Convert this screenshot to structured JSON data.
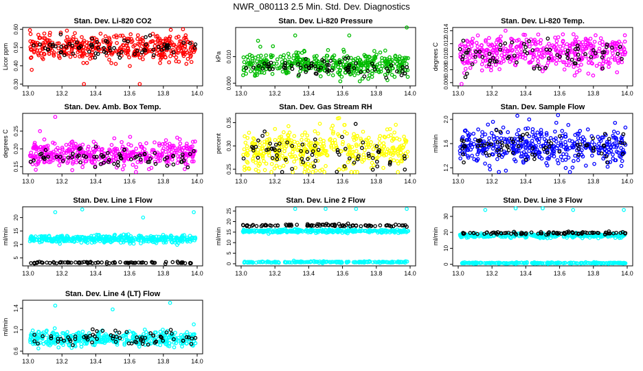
{
  "title": "NWR_080113  2.5 Min. Std. Dev. Diagnostics",
  "colors": {
    "axis": "#000000",
    "secondary": "#000000"
  },
  "chart_data": [
    {
      "type": "scatter",
      "title": "Stan. Dev. Li-820 CO2",
      "ylabel": "Licor ppm",
      "xlim": [
        13.0,
        14.0
      ],
      "ylim": [
        0.29,
        0.61
      ],
      "xticks": [
        "13.0",
        "13.2",
        "13.4",
        "13.6",
        "13.8",
        "14.0"
      ],
      "yticks": [
        {
          "v": 0.3,
          "label": "0.30"
        },
        {
          "v": 0.4,
          "label": "0.40"
        },
        {
          "v": 0.5,
          "label": "0.50"
        },
        {
          "v": 0.6,
          "label": "0.60"
        }
      ],
      "series": [
        {
          "name": "primary",
          "color": "#ff0000",
          "center": 0.5,
          "spread": 0.035,
          "n": 420,
          "outliers": [
            [
              13.06,
              0.57
            ],
            [
              13.33,
              0.3
            ],
            [
              13.66,
              0.3
            ],
            [
              13.84,
              0.56
            ]
          ]
        },
        {
          "name": "secondary",
          "color": "#000000",
          "center": 0.5,
          "spread": 0.03,
          "n": 70
        }
      ]
    },
    {
      "type": "scatter",
      "title": "Stan. Dev. Li-820 Pressure",
      "ylabel": "kPa",
      "xlim": [
        13.0,
        14.0
      ],
      "ylim": [
        -0.001,
        0.021
      ],
      "xticks": [
        "13.0",
        "13.2",
        "13.4",
        "13.6",
        "13.8",
        "14.0"
      ],
      "yticks": [
        {
          "v": 0.0,
          "label": "0.000"
        },
        {
          "v": 0.01,
          "label": "0.010"
        }
      ],
      "series": [
        {
          "name": "primary",
          "color": "#00bb00",
          "center": 0.007,
          "spread": 0.0022,
          "n": 420,
          "outliers": [
            [
              13.1,
              0.016
            ],
            [
              13.32,
              0.018
            ],
            [
              13.64,
              0.018
            ],
            [
              13.98,
              0.021
            ]
          ]
        },
        {
          "name": "secondary",
          "color": "#000000",
          "center": 0.006,
          "spread": 0.0015,
          "n": 70
        }
      ]
    },
    {
      "type": "scatter",
      "title": "Stan. Dev. Li-820 Temp.",
      "ylabel": "degrees C",
      "xlim": [
        13.0,
        14.0
      ],
      "ylim": [
        0.0055,
        0.0145
      ],
      "xticks": [
        "13.0",
        "13.2",
        "13.4",
        "13.6",
        "13.8",
        "14.0"
      ],
      "yticks": [
        {
          "v": 0.006,
          "label": "0.006"
        },
        {
          "v": 0.008,
          "label": "0.008"
        },
        {
          "v": 0.01,
          "label": "0.010"
        },
        {
          "v": 0.012,
          "label": "0.012"
        },
        {
          "v": 0.014,
          "label": "0.014"
        }
      ],
      "series": [
        {
          "name": "primary",
          "color": "#ff00ff",
          "center": 0.0105,
          "spread": 0.0013,
          "n": 420,
          "outliers": [
            [
              13.02,
              0.0058
            ],
            [
              13.28,
              0.014
            ]
          ]
        },
        {
          "name": "secondary",
          "color": "#000000",
          "center": 0.0105,
          "spread": 0.0011,
          "n": 70
        }
      ]
    },
    {
      "type": "scatter",
      "title": "Stan. Dev. Amb. Box Temp.",
      "ylabel": "degrees C",
      "xlim": [
        13.0,
        14.0
      ],
      "ylim": [
        0.13,
        0.3
      ],
      "xticks": [
        "13.0",
        "13.2",
        "13.4",
        "13.6",
        "13.8",
        "14.0"
      ],
      "yticks": [
        {
          "v": 0.15,
          "label": "0.15"
        },
        {
          "v": 0.2,
          "label": "0.20"
        },
        {
          "v": 0.25,
          "label": "0.25"
        }
      ],
      "series": [
        {
          "name": "primary",
          "color": "#ff00ff",
          "center": 0.185,
          "spread": 0.018,
          "n": 420,
          "outliers": [
            [
              13.16,
              0.29
            ],
            [
              13.07,
              0.25
            ]
          ]
        },
        {
          "name": "secondary",
          "color": "#000000",
          "center": 0.175,
          "spread": 0.015,
          "n": 70
        }
      ]
    },
    {
      "type": "scatter",
      "title": "Stan. Dev. Gas Stream RH",
      "ylabel": "percent",
      "xlim": [
        13.0,
        14.0
      ],
      "ylim": [
        0.24,
        0.37
      ],
      "xticks": [
        "13.0",
        "13.2",
        "13.4",
        "13.6",
        "13.8",
        "14.0"
      ],
      "yticks": [
        {
          "v": 0.25,
          "label": "0.25"
        },
        {
          "v": 0.3,
          "label": "0.30"
        },
        {
          "v": 0.35,
          "label": "0.35"
        }
      ],
      "series": [
        {
          "name": "primary",
          "color": "#ffff00",
          "center": 0.29,
          "spread": 0.022,
          "n": 420,
          "outliers": [
            [
              13.58,
              0.36
            ]
          ]
        },
        {
          "name": "secondary",
          "color": "#000000",
          "center": 0.285,
          "spread": 0.022,
          "n": 70
        }
      ]
    },
    {
      "type": "scatter",
      "title": "Stan. Dev. Sample Flow",
      "ylabel": "ml/min",
      "xlim": [
        13.0,
        14.0
      ],
      "ylim": [
        1.1,
        2.1
      ],
      "xticks": [
        "13.0",
        "13.2",
        "13.4",
        "13.6",
        "13.8",
        "14.0"
      ],
      "yticks": [
        {
          "v": 1.2,
          "label": "1.2"
        },
        {
          "v": 1.6,
          "label": "1.6"
        },
        {
          "v": 2.0,
          "label": "2.0"
        }
      ],
      "series": [
        {
          "name": "primary",
          "color": "#0000ff",
          "center": 1.55,
          "spread": 0.15,
          "n": 420,
          "outliers": [
            [
              13.35,
              2.06
            ],
            [
              13.42,
              2.0
            ]
          ]
        },
        {
          "name": "secondary",
          "color": "#000000",
          "center": 1.55,
          "spread": 0.12,
          "n": 70
        }
      ]
    },
    {
      "type": "scatter",
      "title": "Stan. Dev. Line 1 Flow",
      "ylabel": "ml/min",
      "xlim": [
        13.0,
        14.0
      ],
      "ylim": [
        2,
        24
      ],
      "xticks": [
        "13.0",
        "13.2",
        "13.4",
        "13.6",
        "13.8",
        "14.0"
      ],
      "yticks": [
        {
          "v": 5,
          "label": "5"
        },
        {
          "v": 10,
          "label": "10"
        },
        {
          "v": 15,
          "label": "15"
        },
        {
          "v": 20,
          "label": "20"
        }
      ],
      "series": [
        {
          "name": "primary",
          "color": "#00ffff",
          "center": 12,
          "spread": 0.7,
          "n": 420,
          "outliers": [
            [
              13.16,
              22
            ],
            [
              13.32,
              23
            ],
            [
              13.68,
              20
            ],
            [
              13.98,
              22
            ]
          ]
        },
        {
          "name": "secondary",
          "color": "#000000",
          "center": 3.2,
          "spread": 0.15,
          "n": 90
        }
      ]
    },
    {
      "type": "scatter",
      "title": "Stan. Dev. Line 2 Flow",
      "ylabel": "ml/min",
      "xlim": [
        13.0,
        14.0
      ],
      "ylim": [
        -1,
        27
      ],
      "xticks": [
        "13.0",
        "13.2",
        "13.4",
        "13.6",
        "13.8",
        "14.0"
      ],
      "yticks": [
        {
          "v": 0,
          "label": "0"
        },
        {
          "v": 5,
          "label": "5"
        },
        {
          "v": 10,
          "label": "10"
        },
        {
          "v": 15,
          "label": "15"
        },
        {
          "v": 20,
          "label": "20"
        },
        {
          "v": 25,
          "label": "25"
        }
      ],
      "series": [
        {
          "name": "primary",
          "color": "#00ffff",
          "center": 15.5,
          "spread": 0.4,
          "n": 300,
          "outliers": [
            [
              13.32,
              26
            ],
            [
              13.5,
              26
            ],
            [
              13.68,
              26
            ],
            [
              13.98,
              26
            ]
          ]
        },
        {
          "name": "primary-low",
          "color": "#00ffff",
          "center": 0.8,
          "spread": 0.2,
          "n": 200
        },
        {
          "name": "secondary",
          "color": "#000000",
          "center": 18.2,
          "spread": 0.3,
          "n": 90
        }
      ]
    },
    {
      "type": "scatter",
      "title": "Stan. Dev. Line 3 Flow",
      "ylabel": "ml/min",
      "xlim": [
        13.0,
        14.0
      ],
      "ylim": [
        -1,
        36
      ],
      "xticks": [
        "13.0",
        "13.2",
        "13.4",
        "13.6",
        "13.8",
        "14.0"
      ],
      "yticks": [
        {
          "v": 0,
          "label": "0"
        },
        {
          "v": 10,
          "label": "10"
        },
        {
          "v": 20,
          "label": "20"
        },
        {
          "v": 30,
          "label": "30"
        }
      ],
      "series": [
        {
          "name": "primary",
          "color": "#00ffff",
          "center": 18,
          "spread": 0.7,
          "n": 300,
          "outliers": [
            [
              13.16,
              34
            ],
            [
              13.34,
              35
            ],
            [
              13.5,
              35
            ],
            [
              13.68,
              34
            ],
            [
              13.98,
              34
            ]
          ]
        },
        {
          "name": "primary-low",
          "color": "#00ffff",
          "center": 0.8,
          "spread": 0.2,
          "n": 200
        },
        {
          "name": "secondary",
          "color": "#000000",
          "center": 19.5,
          "spread": 0.4,
          "n": 90
        }
      ]
    },
    {
      "type": "scatter",
      "title": "Stan. Dev. Line 4 (LT) Flow",
      "ylabel": "ml/min",
      "xlim": [
        13.0,
        14.0
      ],
      "ylim": [
        0.55,
        1.55
      ],
      "xticks": [
        "13.0",
        "13.2",
        "13.4",
        "13.6",
        "13.8",
        "14.0"
      ],
      "yticks": [
        {
          "v": 0.6,
          "label": "0.6"
        },
        {
          "v": 1.0,
          "label": "1.0"
        },
        {
          "v": 1.4,
          "label": "1.4"
        }
      ],
      "series": [
        {
          "name": "primary",
          "color": "#00ffff",
          "center": 0.83,
          "spread": 0.07,
          "n": 420,
          "outliers": [
            [
              13.16,
              1.45
            ],
            [
              13.5,
              1.38
            ],
            [
              13.84,
              1.5
            ],
            [
              13.98,
              1.1
            ]
          ]
        },
        {
          "name": "secondary",
          "color": "#000000",
          "center": 0.85,
          "spread": 0.07,
          "n": 70
        }
      ]
    }
  ]
}
